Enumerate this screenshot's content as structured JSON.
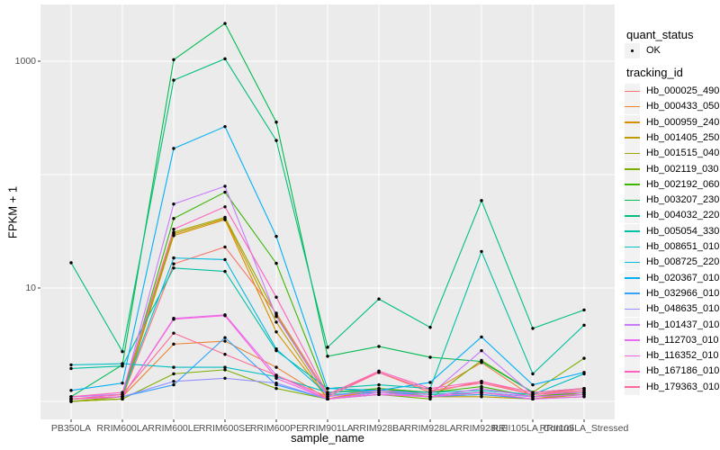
{
  "chart_data": {
    "type": "line",
    "title": "",
    "xlabel": "sample_name",
    "ylabel": "FPKM + 1",
    "x_scale": "categorical",
    "y_scale": "log10",
    "legend_position": "right",
    "grid": "on",
    "panel_bg": "#EBEBEB",
    "grid_color": "#FFFFFF",
    "tick_color": "#333333",
    "tick_label_color": "#4D4D4D",
    "point_color": "#000000",
    "ylim": [
      0.7,
      3160
    ],
    "y_ticks": [
      {
        "value": 10,
        "label": "10"
      },
      {
        "value": 1000,
        "label": "1000"
      }
    ],
    "y_gridlines": [
      1,
      10,
      100,
      1000
    ],
    "categories": [
      "PB350LA",
      "RRIM600LA",
      "RRIM600LE",
      "RRIM600SE",
      "RRIM600PE",
      "RRIM901LA",
      "RRIM928BA",
      "RRIM928LA",
      "RRIM928LE",
      "RRII105LA_Control",
      "RRII105LA_Stressed"
    ],
    "series": [
      {
        "name": "Hb_000025_490",
        "color": "#F8766D",
        "values": [
          1.05,
          1.1,
          16.3,
          23,
          6.0,
          1.15,
          1.8,
          1.2,
          1.5,
          1.15,
          1.3
        ]
      },
      {
        "name": "Hb_000433_050",
        "color": "#EA8331",
        "values": [
          1.05,
          1.1,
          3.2,
          3.4,
          2.0,
          1.05,
          1.3,
          1.2,
          2.2,
          1.1,
          1.25
        ]
      },
      {
        "name": "Hb_000959_240",
        "color": "#D89000",
        "values": [
          1.0,
          1.05,
          29,
          40,
          4.1,
          1.05,
          1.25,
          1.1,
          1.15,
          1.05,
          1.2
        ]
      },
      {
        "name": "Hb_001405_250",
        "color": "#C09B00",
        "values": [
          1.0,
          1.05,
          30,
          41,
          5.0,
          1.05,
          1.2,
          1.1,
          1.1,
          1.05,
          1.15
        ]
      },
      {
        "name": "Hb_001515_040",
        "color": "#A3A500",
        "values": [
          1.0,
          1.1,
          31,
          42,
          5.8,
          1.1,
          1.3,
          1.15,
          1.2,
          1.1,
          1.2
        ]
      },
      {
        "name": "Hb_002119_030",
        "color": "#7CAE00",
        "values": [
          1.0,
          1.05,
          1.75,
          1.9,
          1.3,
          1.05,
          1.15,
          1.05,
          2.3,
          1.2,
          2.4
        ]
      },
      {
        "name": "Hb_002192_060",
        "color": "#39B600",
        "values": [
          1.05,
          1.1,
          41,
          70,
          16.5,
          1.2,
          1.3,
          1.2,
          1.35,
          1.1,
          1.2
        ]
      },
      {
        "name": "Hb_003207_230",
        "color": "#00BB4E",
        "values": [
          1.1,
          2.1,
          1030,
          2150,
          290,
          2.5,
          3.05,
          2.45,
          2.25,
          1.2,
          1.3
        ]
      },
      {
        "name": "Hb_004032_220",
        "color": "#00BF7D",
        "values": [
          16.7,
          2.75,
          680,
          1050,
          200,
          3.0,
          8.0,
          4.5,
          59,
          4.4,
          6.4
        ]
      },
      {
        "name": "Hb_005054_330",
        "color": "#00C1A3",
        "values": [
          1.95,
          2.05,
          15,
          14,
          2.8,
          1.3,
          1.4,
          1.3,
          21,
          1.75,
          4.7
        ]
      },
      {
        "name": "Hb_008651_010",
        "color": "#00BFC4",
        "values": [
          2.1,
          2.15,
          2.0,
          2.0,
          1.65,
          1.2,
          1.25,
          1.2,
          1.25,
          1.15,
          1.75
        ]
      },
      {
        "name": "Hb_008725_220",
        "color": "#00BAE0",
        "values": [
          1.1,
          1.15,
          18.4,
          17.8,
          2.9,
          1.15,
          1.2,
          1.15,
          1.2,
          1.1,
          1.15
        ]
      },
      {
        "name": "Hb_020367_010",
        "color": "#00B0F6",
        "values": [
          1.25,
          1.45,
          170,
          265,
          28.5,
          1.3,
          1.25,
          1.47,
          3.7,
          1.4,
          1.8
        ]
      },
      {
        "name": "Hb_032966_010",
        "color": "#35A2FF",
        "values": [
          1.05,
          1.1,
          1.4,
          3.65,
          1.4,
          1.05,
          1.15,
          1.1,
          1.15,
          1.05,
          1.1
        ]
      },
      {
        "name": "Hb_048635_010",
        "color": "#9590FF",
        "values": [
          1.05,
          1.1,
          1.5,
          1.6,
          1.45,
          1.05,
          1.2,
          1.1,
          1.2,
          1.1,
          1.15
        ]
      },
      {
        "name": "Hb_101437_010",
        "color": "#C77CFF",
        "values": [
          1.1,
          1.15,
          55,
          79,
          5.6,
          1.1,
          1.25,
          1.15,
          2.8,
          1.15,
          1.2
        ]
      },
      {
        "name": "Hb_112703_010",
        "color": "#E76BF3",
        "values": [
          1.05,
          1.1,
          5.4,
          5.8,
          1.7,
          1.05,
          1.2,
          1.1,
          1.3,
          1.1,
          1.15
        ]
      },
      {
        "name": "Hb_116352_010",
        "color": "#FA62DB",
        "values": [
          1.05,
          1.1,
          5.3,
          5.7,
          1.6,
          1.05,
          1.15,
          1.1,
          1.2,
          1.05,
          1.1
        ]
      },
      {
        "name": "Hb_167186_010",
        "color": "#FF62BC",
        "values": [
          1.1,
          1.2,
          33,
          52,
          8.3,
          1.15,
          1.85,
          1.3,
          1.5,
          1.2,
          1.3
        ]
      },
      {
        "name": "Hb_179363_010",
        "color": "#FF6A98",
        "values": [
          1.05,
          1.15,
          4.0,
          2.6,
          1.7,
          1.1,
          1.8,
          1.25,
          1.45,
          1.15,
          1.25
        ]
      }
    ]
  },
  "legend": {
    "quant_status_title": "quant_status",
    "quant_status_value": "OK",
    "tracking_id_title": "tracking_id"
  }
}
